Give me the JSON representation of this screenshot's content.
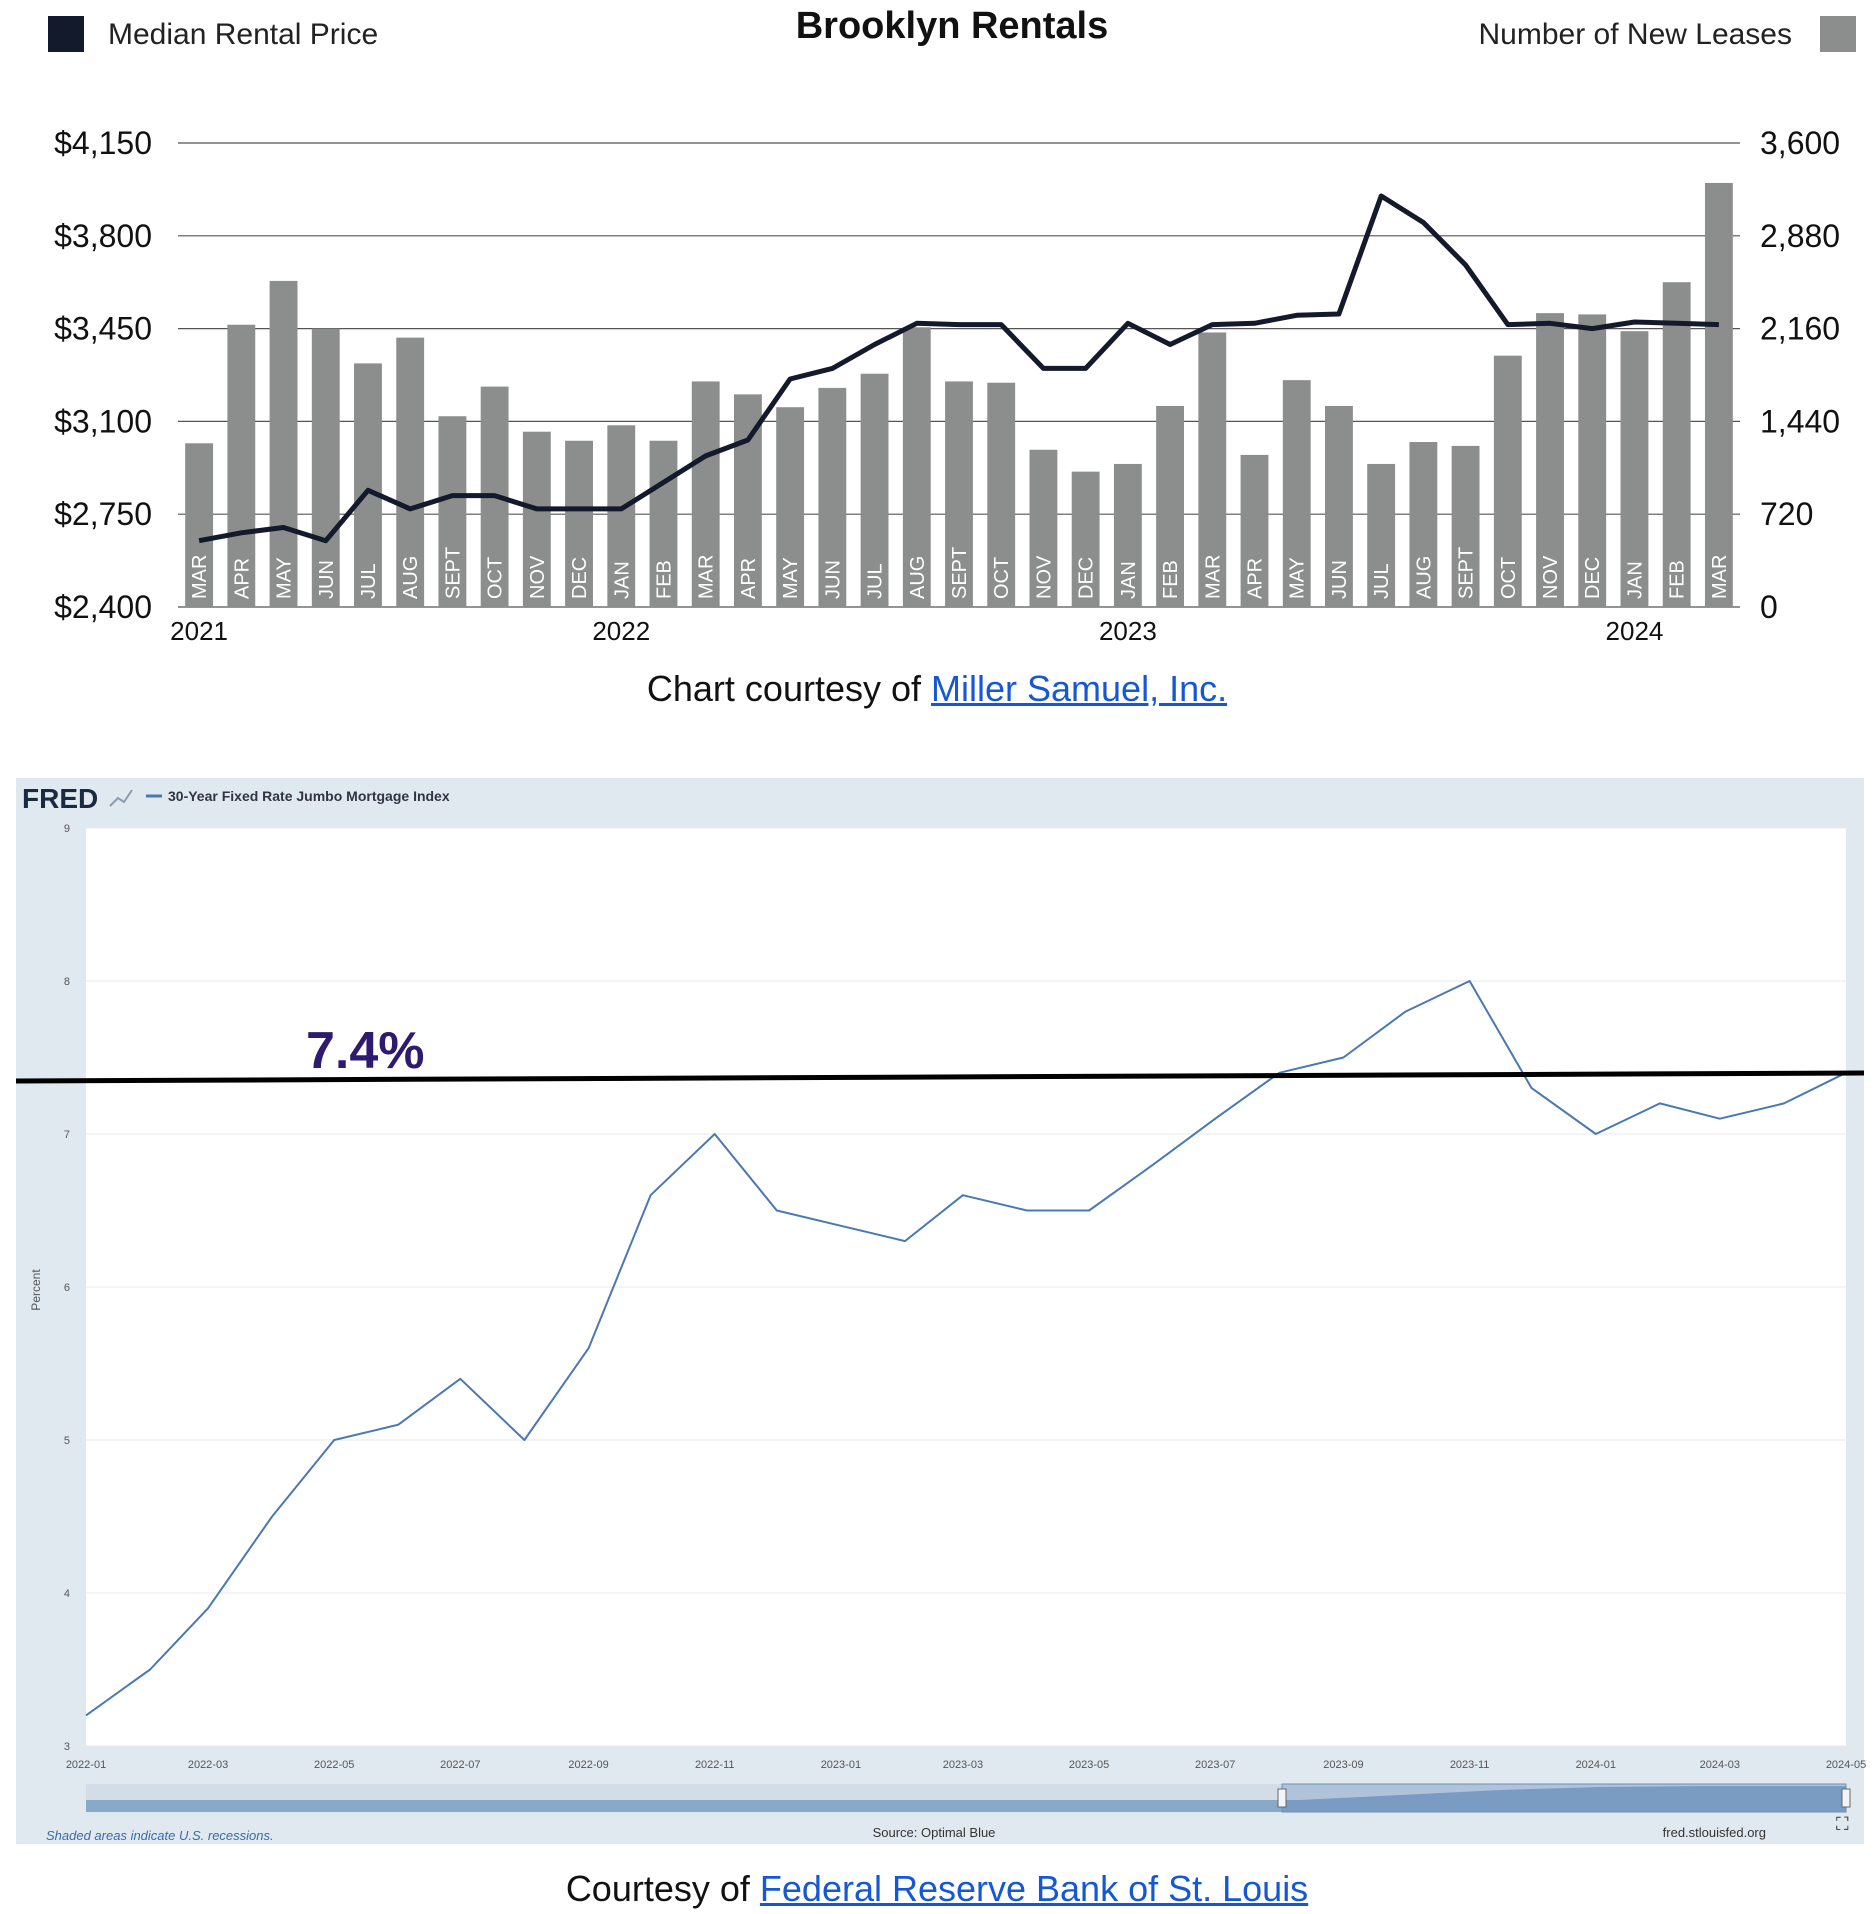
{
  "captions": {
    "top_prefix": "Chart courtesy of ",
    "top_link": "Miller Samuel, Inc.",
    "bottom_prefix": "Courtesy of ",
    "bottom_link": "Federal Reserve Bank of St. Louis"
  },
  "colors": {
    "bar": "#8c8d8d",
    "price_line": "#121a2b",
    "fred_line": "#4a78b3",
    "fred_bg": "#e1e9f0",
    "annotation": "#2e1a6e",
    "link": "#1558d6"
  },
  "chart_data": [
    {
      "type": "bar+line",
      "title": "Brooklyn Rentals",
      "legend_left": "Median Rental Price",
      "legend_right": "Number of New Leases",
      "legend_placement": "top",
      "categories": [
        "MAR",
        "APR",
        "MAY",
        "JUN",
        "JUL",
        "AUG",
        "SEPT",
        "OCT",
        "NOV",
        "DEC",
        "JAN",
        "FEB",
        "MAR",
        "APR",
        "MAY",
        "JUN",
        "JUL",
        "AUG",
        "SEPT",
        "OCT",
        "NOV",
        "DEC",
        "JAN",
        "FEB",
        "MAR",
        "APR",
        "MAY",
        "JUN",
        "JUL",
        "AUG",
        "SEPT",
        "OCT",
        "NOV",
        "DEC",
        "JAN",
        "FEB",
        "MAR"
      ],
      "years": [
        {
          "label": "2021",
          "index": 0
        },
        {
          "label": "2022",
          "index": 10
        },
        {
          "label": "2023",
          "index": 22
        },
        {
          "label": "2024",
          "index": 34
        }
      ],
      "series": [
        {
          "name": "Number of New Leases",
          "axis": "right",
          "kind": "bar",
          "values": [
            1270,
            2190,
            2530,
            2160,
            1890,
            2090,
            1480,
            1710,
            1360,
            1290,
            1410,
            1290,
            1750,
            1650,
            1550,
            1700,
            1810,
            2170,
            1750,
            1740,
            1220,
            1050,
            1110,
            1560,
            2130,
            1180,
            1760,
            1560,
            1110,
            1280,
            1250,
            1950,
            2280,
            2270,
            2140,
            2520,
            3290
          ]
        },
        {
          "name": "Median Rental Price",
          "axis": "left",
          "kind": "line",
          "values": [
            2650,
            2680,
            2700,
            2650,
            2840,
            2770,
            2820,
            2820,
            2770,
            2770,
            2770,
            2870,
            2970,
            3030,
            3260,
            3300,
            3390,
            3470,
            3465,
            3465,
            3300,
            3300,
            3470,
            3390,
            3465,
            3470,
            3500,
            3505,
            3950,
            3850,
            3690,
            3465,
            3470,
            3450,
            3475,
            3470,
            3465
          ]
        }
      ],
      "left_axis": {
        "ticks": [
          "$4,150",
          "$3,800",
          "$3,450",
          "$3,100",
          "$2,750",
          "$2,400"
        ],
        "range": [
          2400,
          4150
        ]
      },
      "right_axis": {
        "ticks": [
          "3,600",
          "2,880",
          "2,160",
          "1,440",
          "720",
          "0"
        ],
        "range": [
          0,
          3600
        ]
      },
      "grid": true
    },
    {
      "type": "line",
      "brand": "FRED",
      "legend": "30-Year Fixed Rate Jumbo Mortgage Index",
      "ylabel": "Percent",
      "ylim": [
        3,
        9
      ],
      "y_ticks": [
        "9",
        "8",
        "7",
        "6",
        "5",
        "4",
        "3"
      ],
      "x_ticks": [
        "2022-01",
        "2022-03",
        "2022-05",
        "2022-07",
        "2022-09",
        "2022-11",
        "2023-01",
        "2023-03",
        "2023-05",
        "2023-07",
        "2023-09",
        "2023-11",
        "2024-01",
        "2024-03",
        "2024-05"
      ],
      "annotation": {
        "text": "7.4%",
        "value": 7.4
      },
      "source": "Source: Optimal Blue",
      "footnote": "Shaded areas indicate U.S. recessions.",
      "site": "fred.stlouisfed.org",
      "series": [
        {
          "name": "30-Year Fixed Rate Jumbo Mortgage Index",
          "x": [
            "2022-01",
            "2022-02",
            "2022-03",
            "2022-04",
            "2022-05",
            "2022-06",
            "2022-07",
            "2022-08",
            "2022-09",
            "2022-10",
            "2022-11",
            "2022-12",
            "2023-01",
            "2023-02",
            "2023-03",
            "2023-04",
            "2023-05",
            "2023-06",
            "2023-07",
            "2023-08",
            "2023-09",
            "2023-10",
            "2023-11",
            "2023-12",
            "2024-01",
            "2024-02",
            "2024-03",
            "2024-04",
            "2024-05"
          ],
          "y": [
            3.2,
            3.5,
            3.9,
            4.5,
            5.0,
            5.1,
            5.4,
            5.0,
            5.6,
            6.6,
            7.0,
            6.5,
            6.4,
            6.3,
            6.6,
            6.5,
            6.5,
            6.8,
            7.1,
            7.4,
            7.5,
            7.8,
            8.0,
            7.3,
            7.0,
            7.2,
            7.1,
            7.2,
            7.4
          ]
        }
      ]
    }
  ]
}
